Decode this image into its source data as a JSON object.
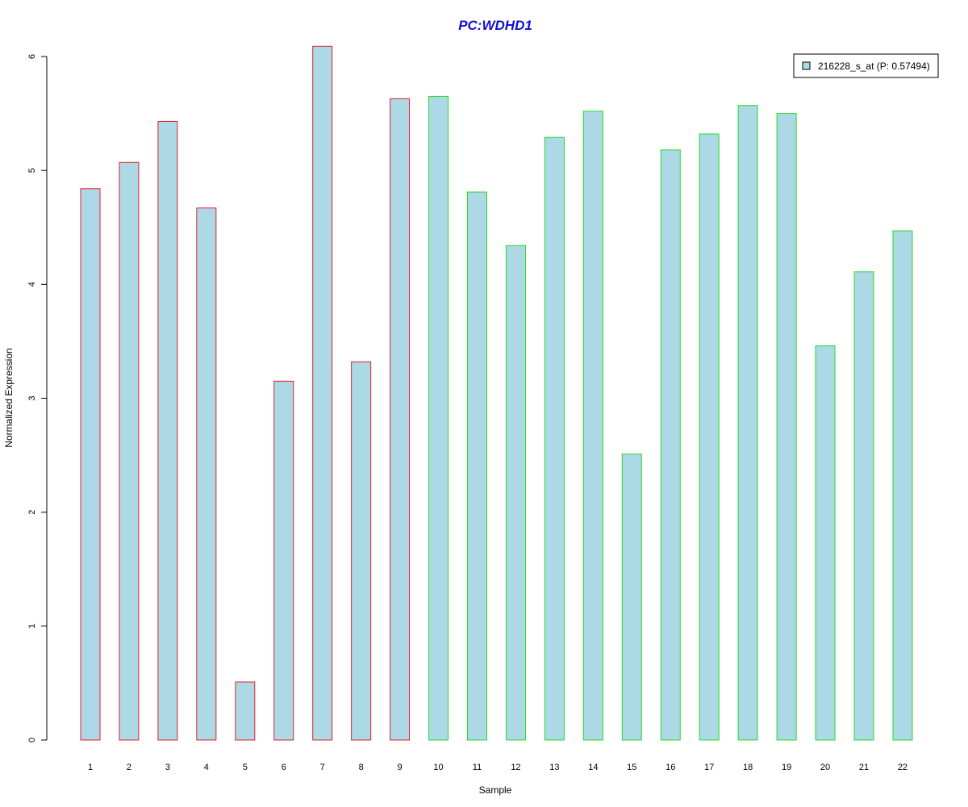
{
  "chart_data": {
    "type": "bar",
    "title": "PC:WDHD1",
    "xlabel": "Sample",
    "ylabel": "Normalized Expression",
    "categories": [
      "1",
      "2",
      "3",
      "4",
      "5",
      "6",
      "7",
      "8",
      "9",
      "10",
      "11",
      "12",
      "13",
      "14",
      "15",
      "16",
      "17",
      "18",
      "19",
      "20",
      "21",
      "22"
    ],
    "series": [
      {
        "name": "216228_s_at (P: 0.57494)",
        "values": [
          4.84,
          5.07,
          5.43,
          4.67,
          0.51,
          3.15,
          6.09,
          3.32,
          5.63,
          5.65,
          4.81,
          4.34,
          5.29,
          5.52,
          2.51,
          5.18,
          5.32,
          5.57,
          5.5,
          3.46,
          4.11,
          4.47
        ]
      }
    ],
    "group_border_colors": [
      "#e0202a",
      "#e0202a",
      "#e0202a",
      "#e0202a",
      "#e0202a",
      "#e0202a",
      "#e0202a",
      "#e0202a",
      "#e0202a",
      "#22dd22",
      "#22dd22",
      "#22dd22",
      "#22dd22",
      "#22dd22",
      "#22dd22",
      "#22dd22",
      "#22dd22",
      "#22dd22",
      "#22dd22",
      "#22dd22",
      "#22dd22",
      "#22dd22"
    ],
    "bar_fill": "#add8e6",
    "title_color": "#1010cc",
    "ylim": [
      0,
      6
    ],
    "yticks": [
      0,
      1,
      2,
      3,
      4,
      5,
      6
    ],
    "grid": false,
    "legend_position": "top-right"
  }
}
